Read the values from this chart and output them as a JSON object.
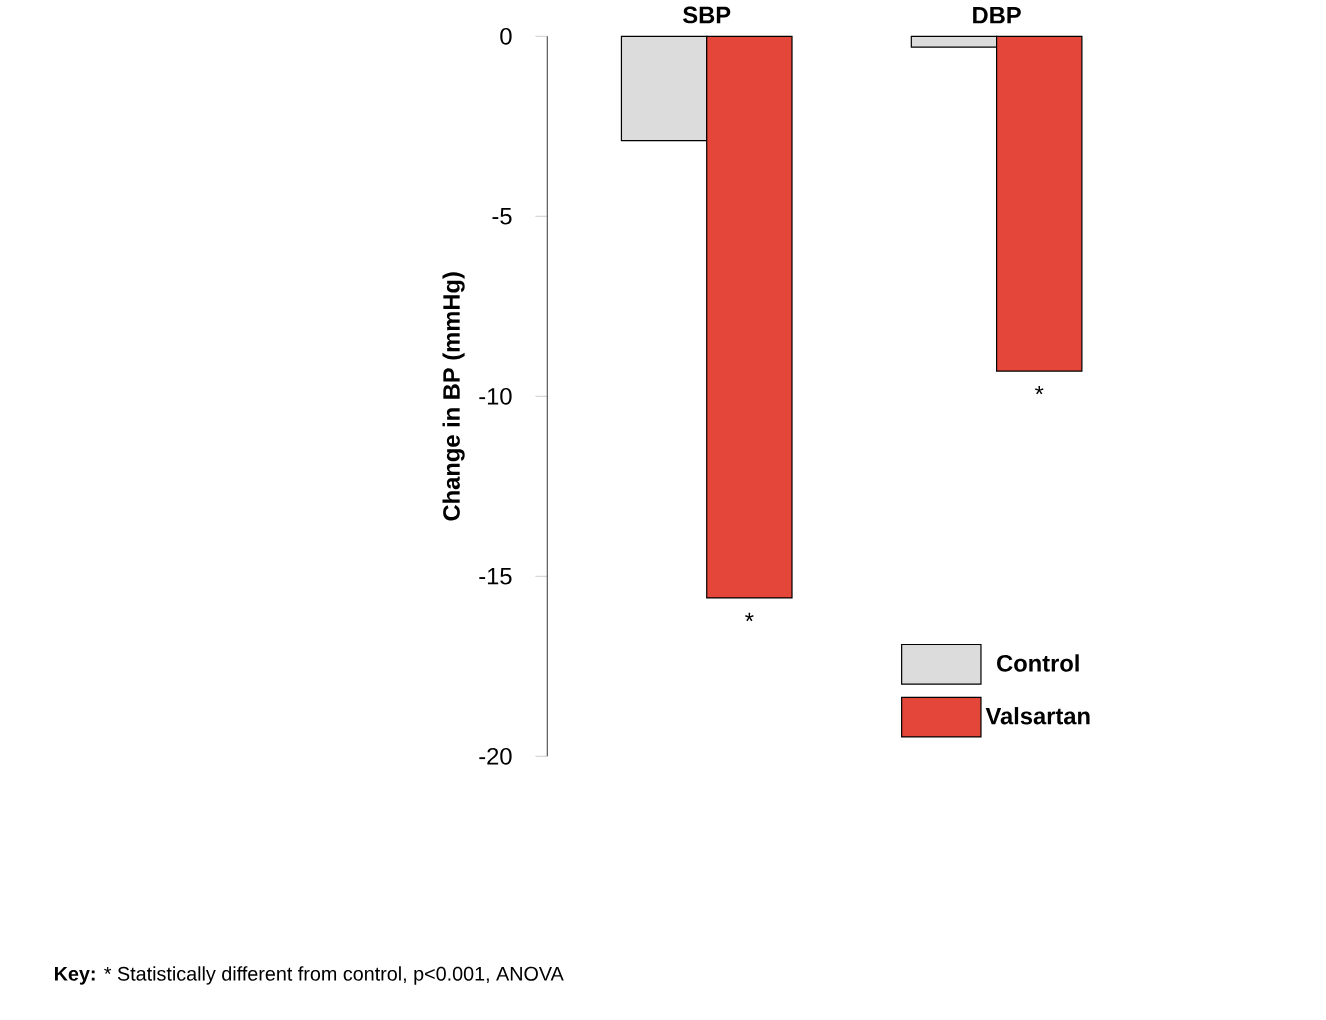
{
  "chart_data": {
    "type": "bar",
    "categories": [
      "SBP",
      "DBP"
    ],
    "series": [
      {
        "name": "Control",
        "color": "#dcdcdc",
        "values": [
          -2.9,
          -0.3
        ]
      },
      {
        "name": "Valsartan",
        "color": "#e5463a",
        "values": [
          -15.6,
          -9.3
        ]
      }
    ],
    "ylabel": "Change in BP (mmHg)",
    "ylim": [
      -20,
      0
    ],
    "yticks": [
      0,
      -5,
      -10,
      -15,
      -20
    ],
    "legend": "bottom right",
    "annotations": [
      {
        "text": "*",
        "x": "SBP",
        "y": -15.6
      },
      {
        "text": "*",
        "x": "DBP",
        "y": -9.3
      },
      "**Key:** * Statistically different from control, p<0.001, ANOVA"
    ]
  }
}
